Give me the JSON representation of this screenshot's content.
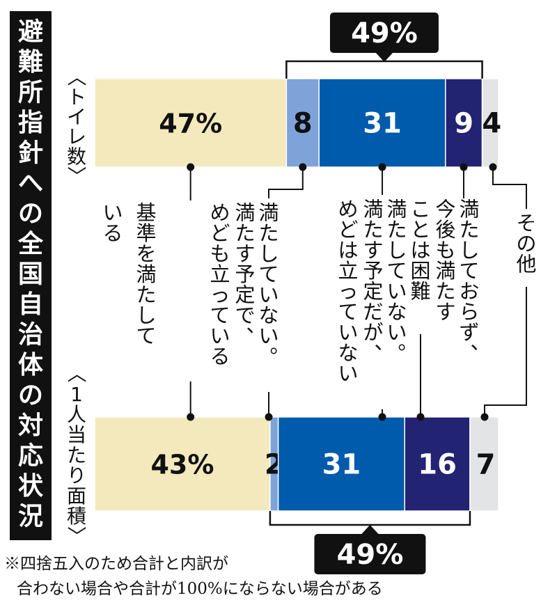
{
  "chart_data": {
    "type": "bar",
    "orientation": "horizontal-stacked",
    "title": "避難所指針への全国自治体の対応状況",
    "categories": [
      "〈トイレ数〉",
      "〈1人当たり面積〉"
    ],
    "series": [
      {
        "name": "基準を満たしている",
        "values": [
          47,
          43
        ],
        "color": "#f3e9bd",
        "text_color": "#111111"
      },
      {
        "name": "満たしていない。満たす予定で、めども立っている",
        "values": [
          8,
          2
        ],
        "color": "#7ea3d8",
        "text_color": "#111111"
      },
      {
        "name": "満たしていない。満たす予定だが、めどは立っていない",
        "values": [
          31,
          31
        ],
        "color": "#005bac",
        "text_color": "#ffffff"
      },
      {
        "name": "満たしておらず、今後も満たすことは困難",
        "values": [
          9,
          16
        ],
        "color": "#232373",
        "text_color": "#ffffff"
      },
      {
        "name": "その他",
        "values": [
          4,
          7
        ],
        "color": "#e3e4e6",
        "text_color": "#111111"
      }
    ],
    "data_labels": [
      [
        "47%",
        "8",
        "31",
        "9",
        "4"
      ],
      [
        "43%",
        "2",
        "31",
        "16",
        "7"
      ]
    ],
    "brackets": [
      {
        "category": 0,
        "position": "top",
        "label": "49%"
      },
      {
        "category": 1,
        "position": "bottom",
        "label": "49%"
      }
    ],
    "legend_labels": [
      [
        "基準を満たして",
        "いる"
      ],
      [
        "満たしていない。",
        "満たす予定で、",
        "めども立っている"
      ],
      [
        "満たしていない。",
        "満たす予定だが、",
        "めどは立っていない"
      ],
      [
        "満たしておらず、",
        "今後も満たす",
        "ことは困難"
      ],
      [
        "その他"
      ]
    ],
    "xlim": [
      0,
      100
    ]
  },
  "footnote": {
    "line1": "※四捨五入のため合計と内訳が",
    "line2": "合わない場合や合計が100%にならない場合がある"
  }
}
